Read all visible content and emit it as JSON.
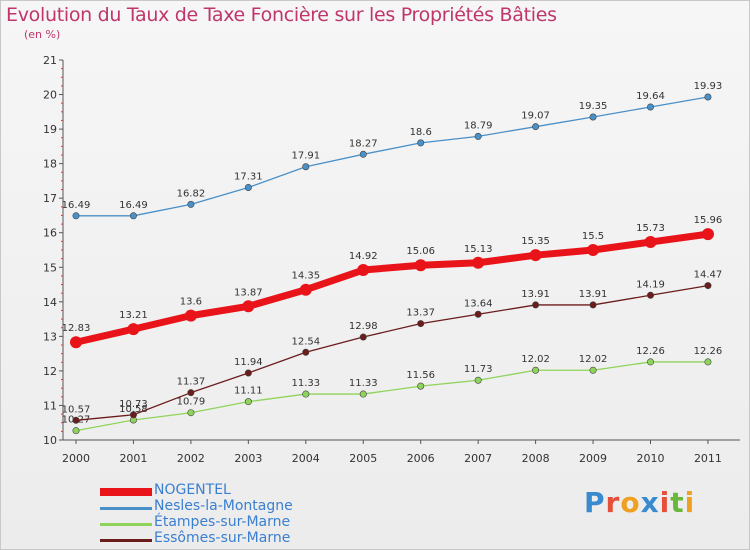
{
  "header": {
    "title": "Evolution du Taux de Taxe Foncière sur les Propriétés Bâties",
    "subtitle": "(en %)"
  },
  "brand": {
    "text": "Proxiti",
    "colors": [
      "#3a8ad0",
      "#e4503a",
      "#f0a020",
      "#3a8ad0",
      "#e4503a",
      "#6ab83a",
      "#f0a020"
    ]
  },
  "chart_data": {
    "type": "line",
    "title": "Evolution du Taux de Taxe Foncière sur les Propriétés Bâties",
    "ylabel": "(en %)",
    "xlabel": "",
    "ylim": [
      10,
      21
    ],
    "yticks": [
      10,
      11,
      12,
      13,
      14,
      15,
      16,
      17,
      18,
      19,
      20,
      21
    ],
    "categories": [
      "2000",
      "2001",
      "2002",
      "2003",
      "2004",
      "2005",
      "2006",
      "2007",
      "2008",
      "2009",
      "2010",
      "2011"
    ],
    "grid": false,
    "legend_position": "bottom-left",
    "series": [
      {
        "name": "Nesles-la-Montagne",
        "color": "#4a90c8",
        "values": [
          16.49,
          16.49,
          16.82,
          17.31,
          17.91,
          18.27,
          18.6,
          18.79,
          19.07,
          19.35,
          19.64,
          19.93
        ],
        "labels": [
          "16.49",
          "16.49",
          "16.82",
          "17.31",
          "17.91",
          "18.27",
          "18.6",
          "18.79",
          "19.07",
          "19.35",
          "19.64",
          "19.93"
        ],
        "bold": false
      },
      {
        "name": "Étampes-sur-Marne",
        "color": "#8fd45a",
        "values": [
          10.27,
          10.58,
          10.79,
          11.11,
          11.33,
          11.33,
          11.56,
          11.73,
          12.02,
          12.02,
          12.26,
          12.26
        ],
        "labels": [
          "10.27",
          "10.58",
          "10.79",
          "11.11",
          "11.33",
          "11.33",
          "11.56",
          "11.73",
          "12.02",
          "12.02",
          "12.26",
          "12.26"
        ],
        "bold": false
      },
      {
        "name": "Essômes-sur-Marne",
        "color": "#6b1c1c",
        "values": [
          10.57,
          10.73,
          11.37,
          11.94,
          12.54,
          12.98,
          13.37,
          13.64,
          13.91,
          13.91,
          14.19,
          14.47
        ],
        "labels": [
          "10.57",
          "10.73",
          "11.37",
          "11.94",
          "12.54",
          "12.98",
          "13.37",
          "13.64",
          "13.91",
          "13.91",
          "14.19",
          "14.47"
        ],
        "bold": false
      },
      {
        "name": "NOGENTEL",
        "color": "#e8141a",
        "values": [
          12.83,
          13.21,
          13.6,
          13.87,
          14.35,
          14.92,
          15.06,
          15.13,
          15.35,
          15.5,
          15.73,
          15.96
        ],
        "labels": [
          "12.83",
          "13.21",
          "13.6",
          "13.87",
          "14.35",
          "14.92",
          "15.06",
          "15.13",
          "15.35",
          "15.5",
          "15.73",
          "15.96"
        ],
        "bold": true
      }
    ],
    "legend": [
      {
        "name": "NOGENTEL",
        "color": "#e8141a",
        "label_color": "#3a7fd0"
      },
      {
        "name": "Nesles-la-Montagne",
        "color": "#4a90c8",
        "label_color": "#3a7fd0"
      },
      {
        "name": "Étampes-sur-Marne",
        "color": "#8fd45a",
        "label_color": "#3a7fd0"
      },
      {
        "name": "Essômes-sur-Marne",
        "color": "#6b1c1c",
        "label_color": "#3a7fd0"
      }
    ]
  }
}
